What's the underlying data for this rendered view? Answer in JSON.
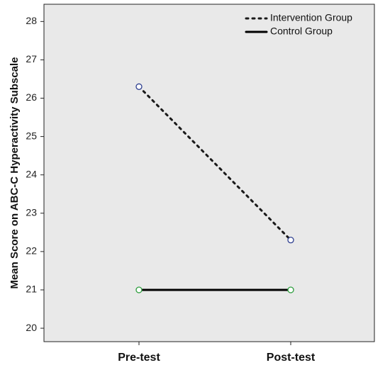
{
  "chart_data": {
    "type": "line",
    "title": "",
    "xlabel": "",
    "ylabel": "Mean Score on ABC-C Hyperactivity Subscale",
    "categories": [
      "Pre-test",
      "Post-test"
    ],
    "ylim": [
      19.65,
      28.45
    ],
    "yticks": [
      20,
      21,
      22,
      23,
      24,
      25,
      26,
      27,
      28
    ],
    "grid": false,
    "legend_position": "top-right",
    "series": [
      {
        "name": "Intervention Group",
        "values": [
          26.3,
          22.3
        ],
        "line_style": "dotted",
        "line_color": "#1a1a1a",
        "marker_color": "#2d3e8f"
      },
      {
        "name": "Control Group",
        "values": [
          21.0,
          21.0
        ],
        "line_style": "solid",
        "line_color": "#000000",
        "marker_color": "#2e9e3e"
      }
    ]
  },
  "colors": {
    "plot_background": "#e9e9e9",
    "axis": "#222222"
  }
}
